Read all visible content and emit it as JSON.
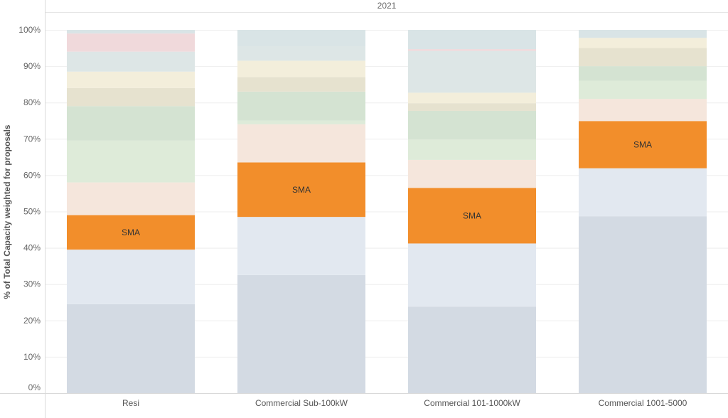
{
  "chart_data": {
    "type": "bar",
    "stacked": true,
    "column_header": "2021",
    "ylabel": "% of Total Capacity weighted for proposals",
    "xlabel": "",
    "ylim": [
      0,
      100
    ],
    "yticks": [
      "0%",
      "10%",
      "20%",
      "30%",
      "40%",
      "50%",
      "60%",
      "70%",
      "80%",
      "90%",
      "100%"
    ],
    "categories": [
      "Resi",
      "Commercial Sub-100kW",
      "Commercial 101-1000kW",
      "Commercial 1001-5000"
    ],
    "grid": true,
    "highlight_label": "SMA",
    "stacks": [
      [
        {
          "value": 24.5,
          "color": "#d3dae3"
        },
        {
          "value": 15.0,
          "color": "#e2e8f0"
        },
        {
          "value": 9.5,
          "color": "#f28e2b",
          "label": "SMA"
        },
        {
          "value": 9.0,
          "color": "#f5e6dc"
        },
        {
          "value": 11.5,
          "color": "#deebd9"
        },
        {
          "value": 9.5,
          "color": "#d4e3d2"
        },
        {
          "value": 5.0,
          "color": "#e6e2cf"
        },
        {
          "value": 4.5,
          "color": "#f3eedb"
        },
        {
          "value": 5.5,
          "color": "#dde6e6"
        },
        {
          "value": 5.0,
          "color": "#f0d9db"
        },
        {
          "value": 1.0,
          "color": "#d9e4e6"
        }
      ],
      [
        {
          "value": 32.5,
          "color": "#d3dae3"
        },
        {
          "value": 16.0,
          "color": "#e2e8f0"
        },
        {
          "value": 15.0,
          "color": "#f28e2b",
          "label": "SMA"
        },
        {
          "value": 10.5,
          "color": "#f5e6dc"
        },
        {
          "value": 1.0,
          "color": "#deebd9"
        },
        {
          "value": 8.0,
          "color": "#d4e3d2"
        },
        {
          "value": 4.0,
          "color": "#e6e2cf"
        },
        {
          "value": 4.5,
          "color": "#f3eedb"
        },
        {
          "value": 4.0,
          "color": "#dde6e6"
        },
        {
          "value": 4.5,
          "color": "#d9e4e6"
        }
      ],
      [
        {
          "value": 23.8,
          "color": "#d3dae3"
        },
        {
          "value": 17.4,
          "color": "#e2e8f0"
        },
        {
          "value": 15.3,
          "color": "#f28e2b",
          "label": "SMA"
        },
        {
          "value": 7.7,
          "color": "#f5e6dc"
        },
        {
          "value": 5.6,
          "color": "#deebd9"
        },
        {
          "value": 7.9,
          "color": "#d4e3d2"
        },
        {
          "value": 2.1,
          "color": "#e6e2cf"
        },
        {
          "value": 2.9,
          "color": "#f3eedb"
        },
        {
          "value": 11.5,
          "color": "#dde6e6"
        },
        {
          "value": 0.5,
          "color": "#f0d9db"
        },
        {
          "value": 5.3,
          "color": "#d9e4e6"
        }
      ],
      [
        {
          "value": 48.7,
          "color": "#d3dae3"
        },
        {
          "value": 13.2,
          "color": "#e2e8f0"
        },
        {
          "value": 13.0,
          "color": "#f28e2b",
          "label": "SMA"
        },
        {
          "value": 6.1,
          "color": "#f5e6dc"
        },
        {
          "value": 5.0,
          "color": "#deebd9"
        },
        {
          "value": 4.0,
          "color": "#d4e3d2"
        },
        {
          "value": 5.0,
          "color": "#e6e2cf"
        },
        {
          "value": 2.8,
          "color": "#f3eedb"
        },
        {
          "value": 2.2,
          "color": "#d9e4e6"
        }
      ]
    ]
  }
}
